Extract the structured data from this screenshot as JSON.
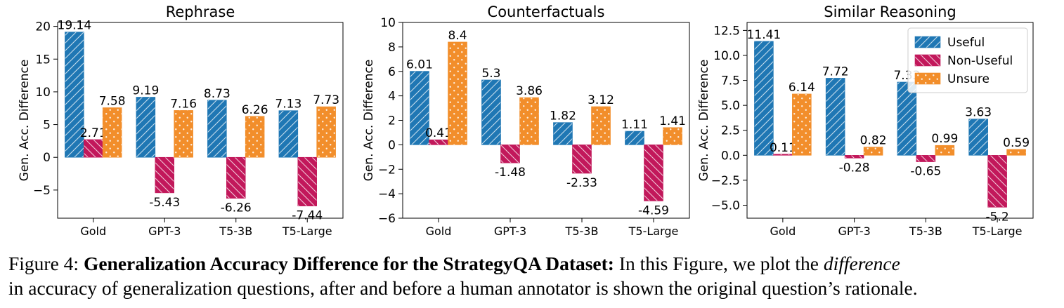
{
  "chart_data": [
    {
      "type": "bar",
      "title": "Rephrase",
      "categories": [
        "Gold",
        "GPT-3",
        "T5-3B",
        "T5-Large"
      ],
      "ylabel": "Gen. Acc. Difference",
      "ylim": [
        -9.3,
        20.6
      ],
      "yticks": [
        -5,
        0,
        5,
        10,
        15,
        20
      ],
      "ytick_labels": [
        "−5",
        "0",
        "5",
        "10",
        "15",
        "20"
      ],
      "series": [
        {
          "name": "Useful",
          "values": [
            19.14,
            9.19,
            8.73,
            7.13
          ],
          "labels": [
            "19.14",
            "9.19",
            "8.73",
            "7.13"
          ]
        },
        {
          "name": "Non-Useful",
          "values": [
            2.71,
            -5.43,
            -6.26,
            -7.44
          ],
          "labels": [
            "2.71",
            "-5.43",
            "-6.26",
            "-7.44"
          ]
        },
        {
          "name": "Unsure",
          "values": [
            7.58,
            7.16,
            6.26,
            7.73
          ],
          "labels": [
            "7.58",
            "7.16",
            "6.26",
            "7.73"
          ]
        }
      ],
      "legend": false
    },
    {
      "type": "bar",
      "title": "Counterfactuals",
      "categories": [
        "Gold",
        "GPT-3",
        "T5-3B",
        "T5-Large"
      ],
      "ylabel": "Gen. Acc. Difference",
      "ylim": [
        -6,
        10
      ],
      "yticks": [
        -6,
        -4,
        -2,
        0,
        2,
        4,
        6,
        8,
        10
      ],
      "ytick_labels": [
        "−6",
        "−4",
        "−2",
        "0",
        "2",
        "4",
        "6",
        "8",
        "10"
      ],
      "series": [
        {
          "name": "Useful",
          "values": [
            6.01,
            5.3,
            1.82,
            1.11
          ],
          "labels": [
            "6.01",
            "5.3",
            "1.82",
            "1.11"
          ]
        },
        {
          "name": "Non-Useful",
          "values": [
            0.41,
            -1.48,
            -2.33,
            -4.59
          ],
          "labels": [
            "0.41",
            "-1.48",
            "-2.33",
            "-4.59"
          ]
        },
        {
          "name": "Unsure",
          "values": [
            8.4,
            3.86,
            3.12,
            1.41
          ],
          "labels": [
            "8.4",
            "3.86",
            "3.12",
            "1.41"
          ]
        }
      ],
      "legend": false
    },
    {
      "type": "bar",
      "title": "Similar Reasoning",
      "categories": [
        "Gold",
        "GPT-3",
        "T5-3B",
        "T5-Large"
      ],
      "ylabel": "Gen. Acc. Difference",
      "ylim": [
        -6.3,
        13.3
      ],
      "yticks": [
        -5.0,
        -2.5,
        0.0,
        2.5,
        5.0,
        7.5,
        10.0,
        12.5
      ],
      "ytick_labels": [
        "−5.0",
        "−2.5",
        "0.0",
        "2.5",
        "5.0",
        "7.5",
        "10.0",
        "12.5"
      ],
      "series": [
        {
          "name": "Useful",
          "values": [
            11.41,
            7.72,
            7.33,
            3.63
          ],
          "labels": [
            "11.41",
            "7.72",
            "7.33",
            "3.63"
          ]
        },
        {
          "name": "Non-Useful",
          "values": [
            0.11,
            -0.28,
            -0.65,
            -5.2
          ],
          "labels": [
            "0.11",
            "-0.28",
            "-0.65",
            "-5.2"
          ]
        },
        {
          "name": "Unsure",
          "values": [
            6.14,
            0.82,
            0.99,
            0.59
          ],
          "labels": [
            "6.14",
            "0.82",
            "0.99",
            "0.59"
          ]
        }
      ],
      "legend": true,
      "legend_position": "top-right"
    }
  ],
  "colors": {
    "Useful": "#1f77b4",
    "Non-Useful": "#c2185b",
    "Unsure": "#f28e2b"
  },
  "caption": {
    "label": "Figure 4:",
    "bold": "Generalization Accuracy Difference for the StrategyQA Dataset:",
    "part1": "In this Figure, we plot the",
    "em": "difference",
    "part2": "in accuracy of generalization questions, after and before a human annotator is shown the original question’s rationale."
  }
}
